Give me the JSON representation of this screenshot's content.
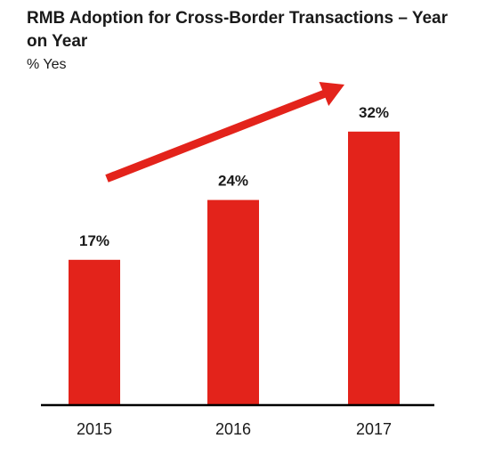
{
  "chart_data": {
    "type": "bar",
    "title": "RMB Adoption for Cross-Border Transactions – Year on Year",
    "subtitle": "% Yes",
    "categories": [
      "2015",
      "2016",
      "2017"
    ],
    "values": [
      17,
      24,
      32
    ],
    "data_labels": [
      "17%",
      "24%",
      "32%"
    ],
    "ylim": [
      0,
      40
    ],
    "grid": false,
    "annotation": "upward-trend-arrow",
    "colors": {
      "bar": "#e3231b",
      "arrow": "#e3231b",
      "axis": "#000000",
      "text": "#1a1a1a"
    }
  }
}
